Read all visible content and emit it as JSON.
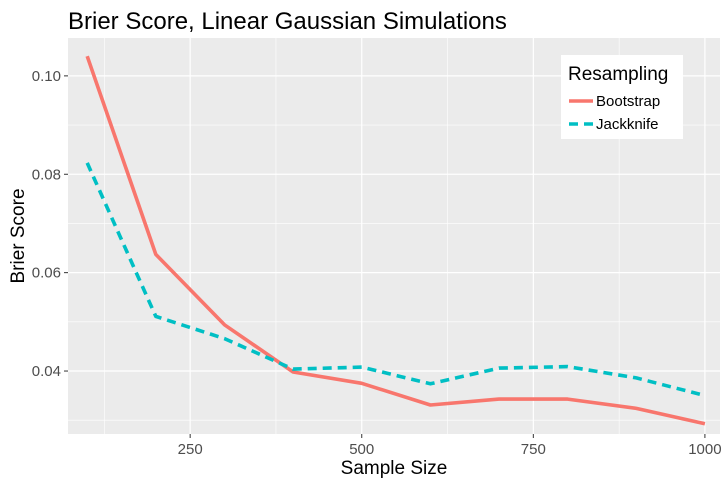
{
  "chart_data": {
    "type": "line",
    "title": "Brier Score, Linear Gaussian Simulations",
    "xlabel": "Sample Size",
    "ylabel": "Brier Score",
    "xlim": [
      72,
      1022
    ],
    "ylim": [
      0.0272,
      0.1077
    ],
    "x_ticks": [
      250,
      500,
      750,
      1000
    ],
    "x_tick_labels": [
      "250",
      "500",
      "750",
      "1000"
    ],
    "y_ticks": [
      0.04,
      0.06,
      0.08,
      0.1
    ],
    "y_tick_labels": [
      "0.04",
      "0.06",
      "0.08",
      "0.10"
    ],
    "grid": true,
    "legend": {
      "title": "Resampling",
      "position": "top-right"
    },
    "x": [
      100,
      200,
      300,
      400,
      500,
      600,
      700,
      800,
      900,
      1000
    ],
    "series": [
      {
        "name": "Bootstrap",
        "color": "#f8766d",
        "dash": "solid",
        "values": [
          0.104,
          0.0637,
          0.0494,
          0.0398,
          0.0375,
          0.0331,
          0.0343,
          0.0343,
          0.0324,
          0.0293
        ]
      },
      {
        "name": "Jackknife",
        "color": "#00bfc4",
        "dash": "dashed",
        "values": [
          0.0823,
          0.0511,
          0.0466,
          0.0404,
          0.0408,
          0.0374,
          0.0406,
          0.0409,
          0.0386,
          0.035
        ]
      }
    ]
  }
}
